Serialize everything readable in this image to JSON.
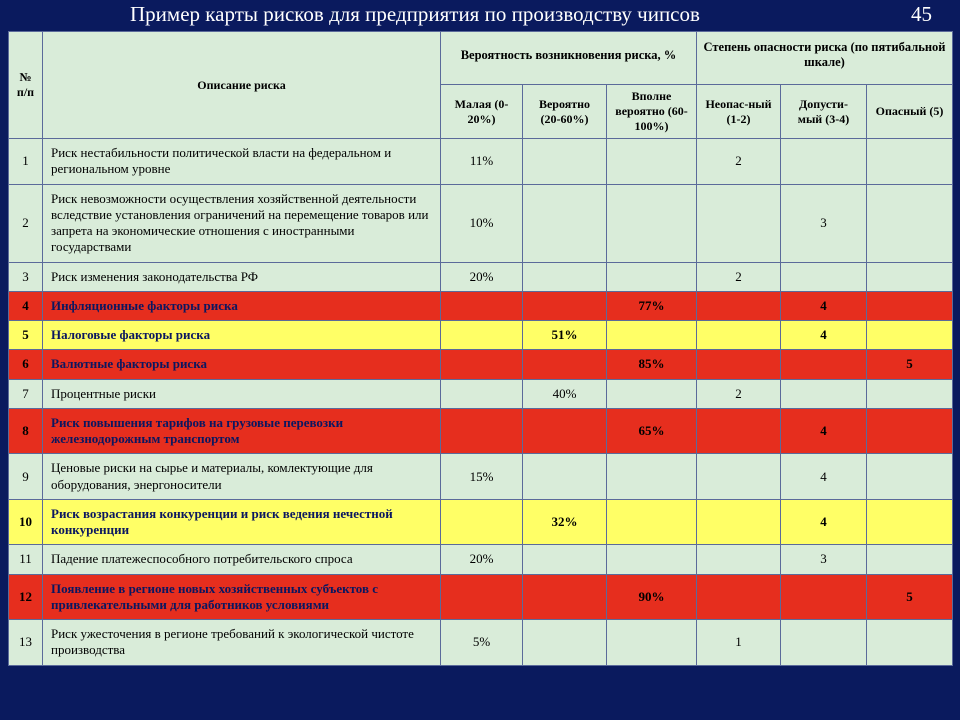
{
  "title": "Пример карты рисков для предприятия по производству чипсов",
  "page_number": "45",
  "colors": {
    "background": "#0a1a5e",
    "header_bg": "#d9ecd9",
    "green_row": "#d9ecd9",
    "red_row": "#e62e1e",
    "yellow_row": "#ffff66",
    "border": "#5b6a9a",
    "title_text": "#ffffff",
    "emphasis_text": "#0b1760"
  },
  "headers": {
    "num": "№ п/п",
    "desc": "Описание риска",
    "prob_group": "Вероятность возникновения риска, %",
    "prob_low": "Малая (0-20%)",
    "prob_mid": "Вероятно (20-60%)",
    "prob_high": "Вполне вероятно (60-100%)",
    "danger_group": "Степень опасности риска (по пятибальной шкале)",
    "danger_low": "Неопас-ный (1-2)",
    "danger_mid": "Допусти-мый (3-4)",
    "danger_high": "Опасный (5)"
  },
  "rows": [
    {
      "n": "1",
      "level": "green",
      "desc": "Риск нестабильности политической власти на федеральном и региональном уровне",
      "p1": "11%",
      "p2": "",
      "p3": "",
      "d1": "2",
      "d2": "",
      "d3": ""
    },
    {
      "n": "2",
      "level": "green",
      "desc": "Риск невозможности осуществления хозяйственной деятельности вследствие установления ограничений на перемещение товаров или запрета на экономические отношения с иностранными государствами",
      "p1": "10%",
      "p2": "",
      "p3": "",
      "d1": "",
      "d2": "3",
      "d3": ""
    },
    {
      "n": "3",
      "level": "green",
      "desc": "Риск изменения законодательства РФ",
      "p1": "20%",
      "p2": "",
      "p3": "",
      "d1": "2",
      "d2": "",
      "d3": ""
    },
    {
      "n": "4",
      "level": "red",
      "desc": "Инфляционные факторы риска",
      "p1": "",
      "p2": "",
      "p3": "77%",
      "d1": "",
      "d2": "4",
      "d3": ""
    },
    {
      "n": "5",
      "level": "yellow",
      "desc": "Налоговые факторы риска",
      "p1": "",
      "p2": "51%",
      "p3": "",
      "d1": "",
      "d2": "4",
      "d3": ""
    },
    {
      "n": "6",
      "level": "red",
      "desc": "Валютные факторы  риска",
      "p1": "",
      "p2": "",
      "p3": "85%",
      "d1": "",
      "d2": "",
      "d3": "5"
    },
    {
      "n": "7",
      "level": "green",
      "desc": "Процентные риски",
      "p1": "",
      "p2": "40%",
      "p3": "",
      "d1": "2",
      "d2": "",
      "d3": ""
    },
    {
      "n": "8",
      "level": "red",
      "desc": "Риск повышения тарифов на грузовые перевозки железнодорожным транспортом",
      "p1": "",
      "p2": "",
      "p3": "65%",
      "d1": "",
      "d2": "4",
      "d3": ""
    },
    {
      "n": "9",
      "level": "green",
      "desc": "Ценовые риски на сырье и материалы, комлектующие для оборудования, энергоносители",
      "p1": "15%",
      "p2": "",
      "p3": "",
      "d1": "",
      "d2": "4",
      "d3": ""
    },
    {
      "n": "10",
      "level": "yellow",
      "desc": "Риск возрастания конкуренции и риск ведения нечестной конкуренции",
      "p1": "",
      "p2": "32%",
      "p3": "",
      "d1": "",
      "d2": "4",
      "d3": ""
    },
    {
      "n": "11",
      "level": "green",
      "desc": "Падение платежеспособного потребительского спроса",
      "p1": "20%",
      "p2": "",
      "p3": "",
      "d1": "",
      "d2": "3",
      "d3": ""
    },
    {
      "n": "12",
      "level": "red",
      "desc": "Появление в регионе новых хозяйственных субъектов с привлекательными для работников условиями",
      "p1": "",
      "p2": "",
      "p3": "90%",
      "d1": "",
      "d2": "",
      "d3": "5"
    },
    {
      "n": "13",
      "level": "green",
      "desc": "Риск ужесточения в регионе требований к экологической чистоте производства",
      "p1": "5%",
      "p2": "",
      "p3": "",
      "d1": "1",
      "d2": "",
      "d3": ""
    }
  ]
}
